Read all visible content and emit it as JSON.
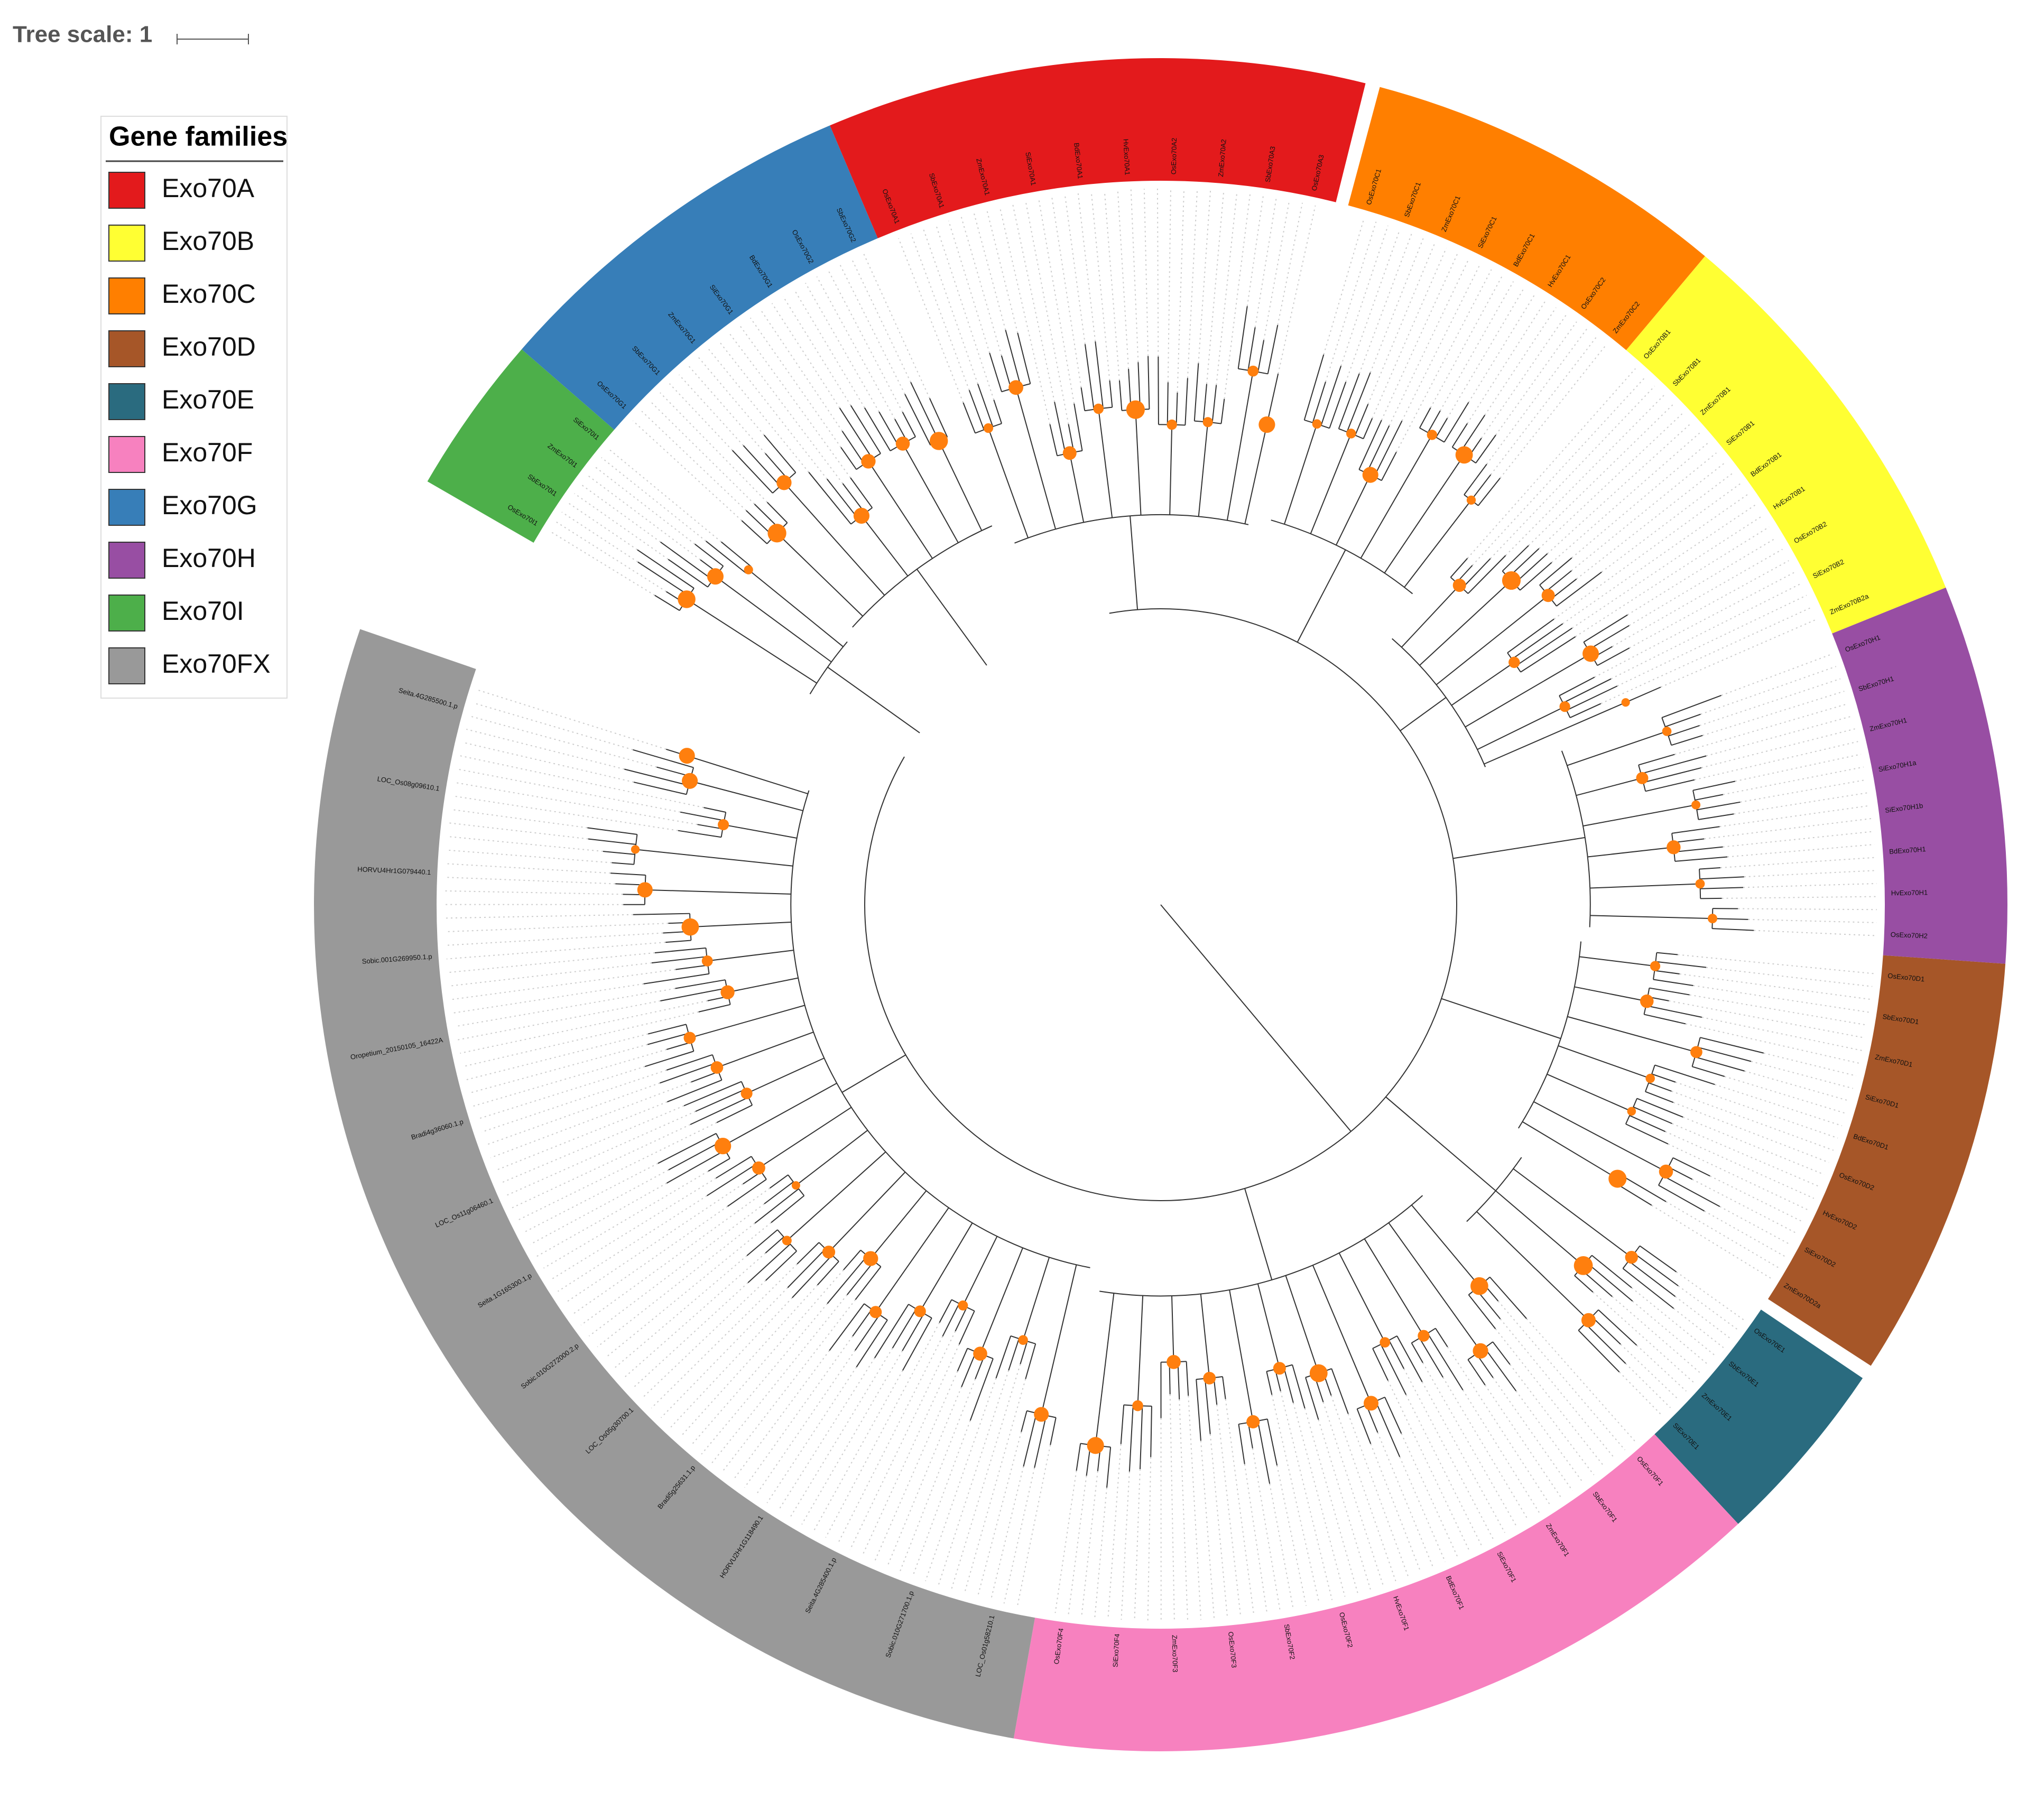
{
  "tree_scale": "Tree scale: 1",
  "legend": {
    "title": "Gene families",
    "items": [
      {
        "label": "Exo70A",
        "color": "#e31a1c"
      },
      {
        "label": "Exo70B",
        "color": "#ffff33"
      },
      {
        "label": "Exo70C",
        "color": "#ff7f00"
      },
      {
        "label": "Exo70D",
        "color": "#a65628"
      },
      {
        "label": "Exo70E",
        "color": "#2a6b7f"
      },
      {
        "label": "Exo70F",
        "color": "#f781bf"
      },
      {
        "label": "Exo70G",
        "color": "#377eb8"
      },
      {
        "label": "Exo70H",
        "color": "#984ea3"
      },
      {
        "label": "Exo70I",
        "color": "#4daf4a"
      },
      {
        "label": "Exo70FX",
        "color": "#999999"
      }
    ]
  },
  "leaves": [
    [
      "OsExo70A1",
      "SbExo70A1",
      "ZmExo70A1",
      "SiExo70A1",
      "BdExo70A1",
      "HvExo70A1",
      "OsExo70A2",
      "ZmExo70A2",
      "SbExo70A3",
      "OsExo70A3"
    ],
    [
      "OsExo70B1",
      "SbExo70B1",
      "ZmExo70B1",
      "SiExo70B1",
      "BdExo70B1",
      "HvExo70B1",
      "OsExo70B2",
      "SiExo70B2",
      "ZmExo70B2a"
    ],
    [
      "OsExo70C1",
      "SbExo70C1",
      "ZmExo70C1",
      "SiExo70C1",
      "BdExo70C1",
      "HvExo70C1",
      "OsExo70C2",
      "ZmExo70C2"
    ],
    [
      "OsExo70D1",
      "SbExo70D1",
      "ZmExo70D1",
      "SiExo70D1",
      "BdExo70D1",
      "OsExo70D2",
      "HvExo70D2",
      "SiExo70D2",
      "ZmExo70D2a"
    ],
    [
      "OsExo70E1",
      "SbExo70E1",
      "ZmExo70E1",
      "SiExo70E1"
    ],
    [
      "OsExo70F1",
      "SbExo70F1",
      "ZmExo70F1",
      "SiExo70F1",
      "BdExo70F1",
      "HvExo70F1",
      "OsExo70F2",
      "SbExo70F2",
      "OsExo70F3",
      "ZmExo70F3",
      "SiExo70F4",
      "OsExo70F4"
    ],
    [
      "OsExo70G1",
      "SbExo70G1",
      "ZmExo70G1",
      "SiExo70G1",
      "BdExo70G1",
      "OsExo70G2",
      "SbExo70G2"
    ],
    [
      "OsExo70H1",
      "SbExo70H1",
      "ZmExo70H1",
      "SiExo70H1a",
      "SiExo70H1b",
      "BdExo70H1",
      "HvExo70H1",
      "OsExo70H2"
    ],
    [
      "OsExo70I1",
      "SbExo70I1",
      "ZmExo70I1",
      "SiExo70I1"
    ],
    [
      "LOC_Os01g58210.1",
      "Sobic.010G271700.1.p",
      "Seita.4G285400.1.p",
      "HORVU2Hr1G118490.1",
      "Bradi5g25631.1.p",
      "LOC_Os05g30700.1",
      "Sobic.010G272000.2.p",
      "Seita.1G165300.1.p",
      "LOC_Os11g06460.1",
      "Bradi4g36060.1.p",
      "Oropetium_20150105_16422A",
      "Sobic.001G269950.1.p",
      "HORVU4Hr1G079440.1",
      "LOC_Os08g09610.1",
      "Seita.4G285500.1.p"
    ]
  ]
}
